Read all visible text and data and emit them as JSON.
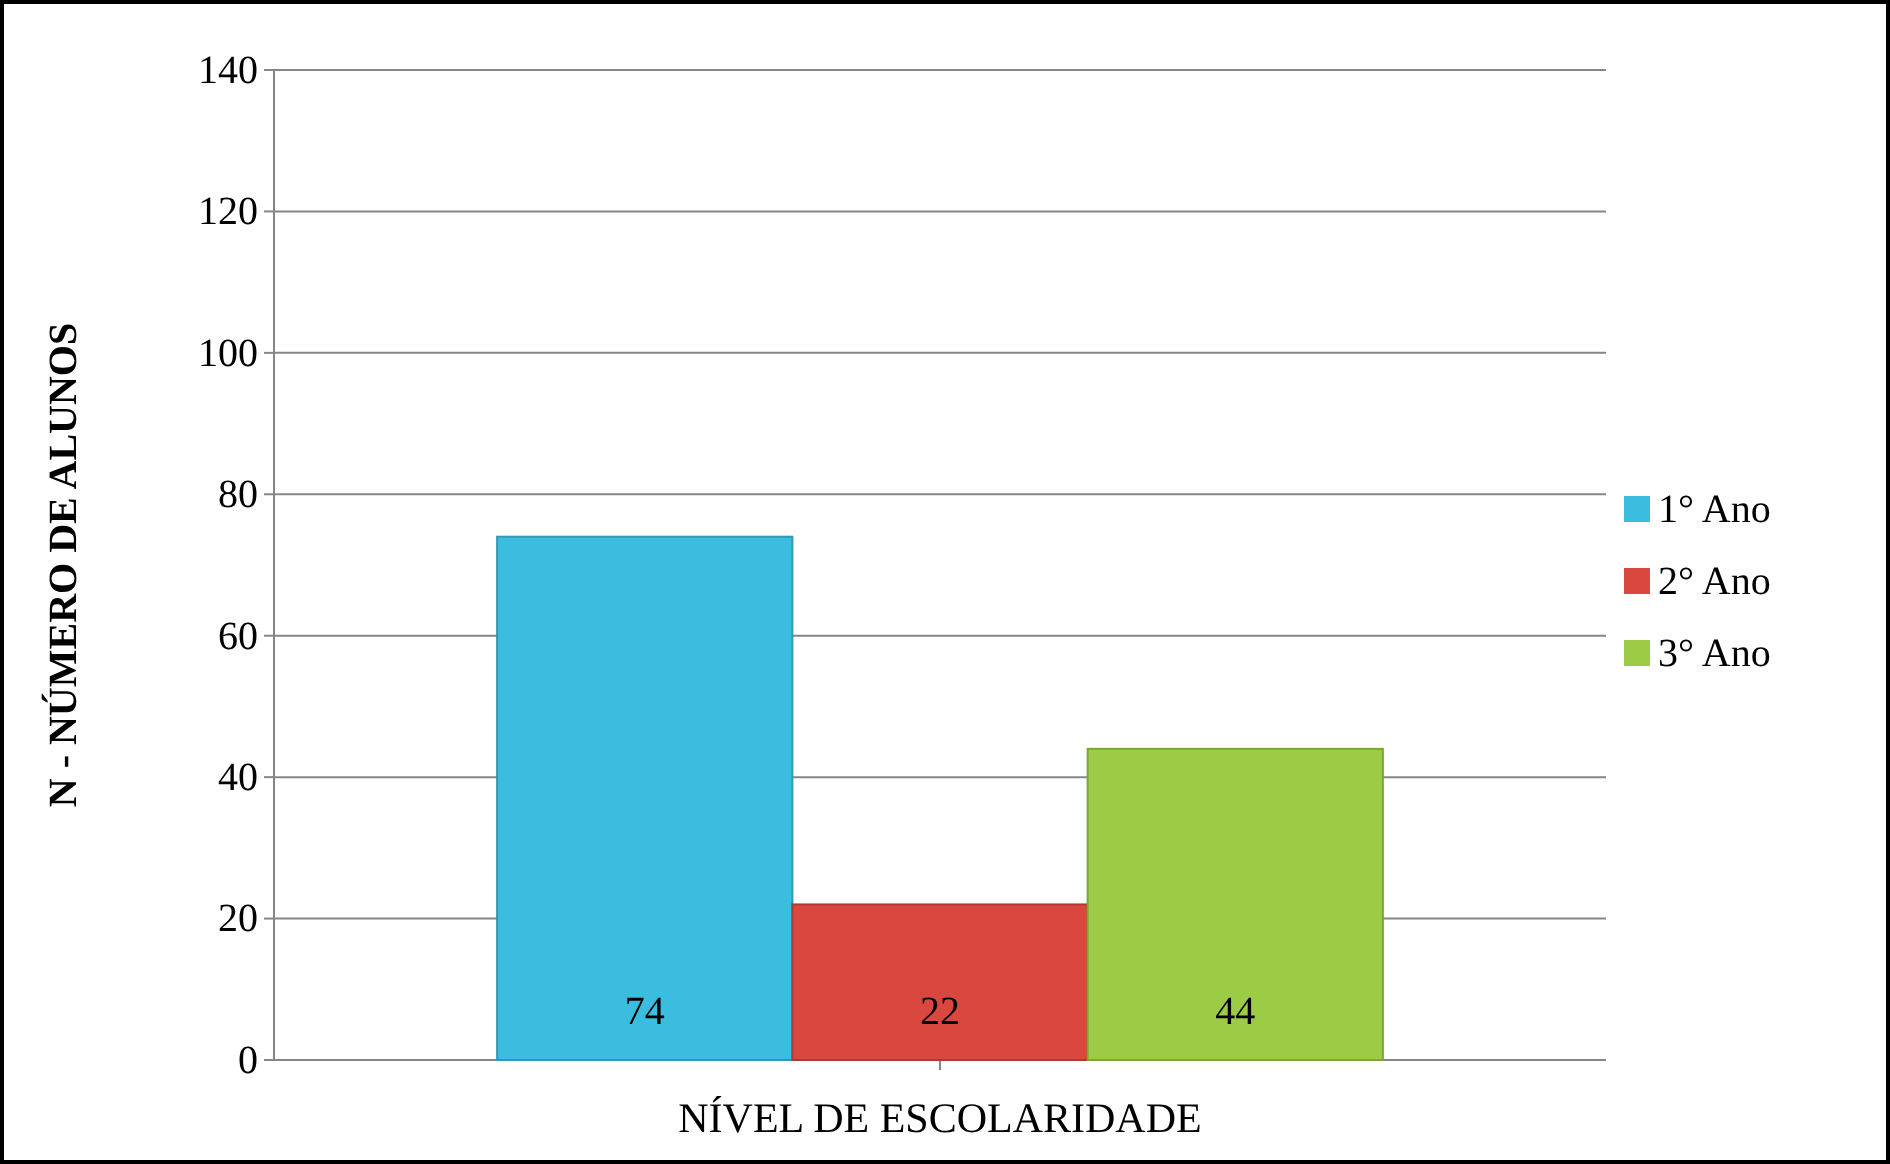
{
  "chart_data": {
    "type": "bar",
    "categories": [
      null
    ],
    "xlabel": "NÍVEL DE ESCOLARIDADE",
    "ylabel": "N - NÚMERO DE ALUNOS",
    "series": [
      {
        "name": "1° Ano",
        "color": "#3bbde0",
        "values": [
          74
        ]
      },
      {
        "name": "2° Ano",
        "color": "#d9473f",
        "values": [
          22
        ]
      },
      {
        "name": "3° Ano",
        "color": "#9ccc45",
        "values": [
          44
        ]
      }
    ],
    "ylim": [
      0,
      140
    ],
    "yticks": [
      0,
      20,
      40,
      60,
      80,
      100,
      120,
      140
    ],
    "grid": "y",
    "legend": "right",
    "data_labels": true
  }
}
